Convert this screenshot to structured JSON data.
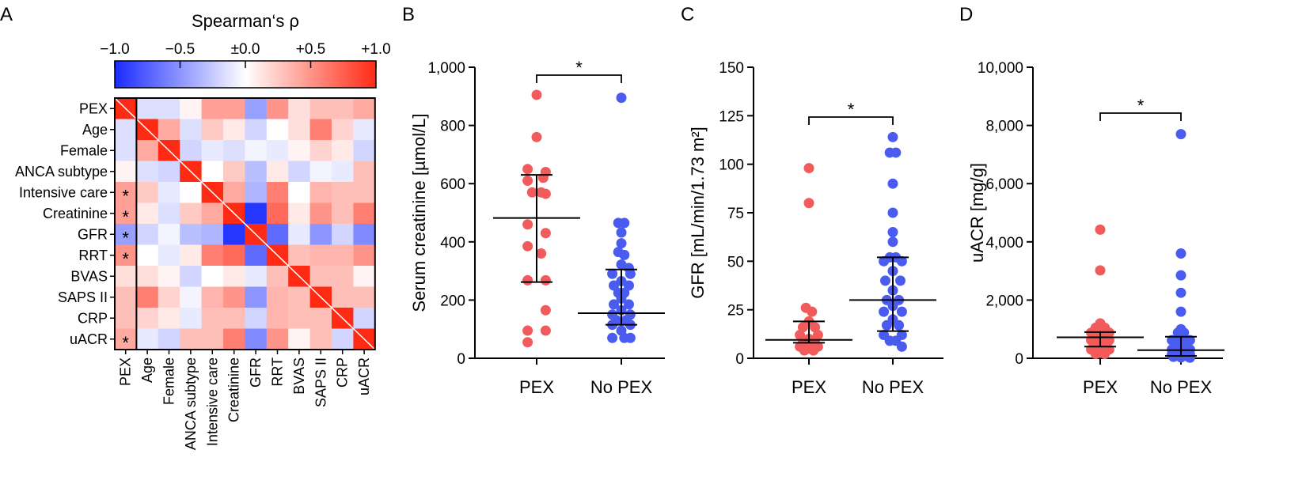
{
  "panels": {
    "A": "A",
    "B": "B",
    "C": "C",
    "D": "D"
  },
  "chart_data": [
    {
      "panel": "A",
      "type": "heatmap",
      "title": "Spearman‘s ρ",
      "colorbar": {
        "range": [
          -1.0,
          1.0
        ],
        "ticks": [
          "−1.0",
          "−0.5",
          "±0.0",
          "+0.5",
          "+1.0"
        ],
        "low_color": "#1a2bff",
        "mid_color": "#ffffff",
        "high_color": "#ff2a14"
      },
      "variables": [
        "PEX",
        "Age",
        "Female",
        "ANCA subtype",
        "Intensive care",
        "Creatinine",
        "GFR",
        "RRT",
        "BVAS",
        "SAPS II",
        "CRP",
        "uACR"
      ],
      "significant_marker": "*",
      "significant_with_PEX": [
        "Intensive care",
        "Creatinine",
        "GFR",
        "RRT",
        "uACR"
      ],
      "matrix": [
        [
          1.0,
          -0.15,
          -0.15,
          0.05,
          0.45,
          0.45,
          -0.45,
          0.5,
          0.15,
          0.3,
          0.3,
          0.4
        ],
        [
          -0.15,
          1.0,
          0.4,
          -0.15,
          0.25,
          0.1,
          -0.2,
          0.0,
          0.15,
          0.6,
          0.2,
          -0.1
        ],
        [
          -0.15,
          0.4,
          1.0,
          -0.2,
          -0.1,
          -0.15,
          -0.05,
          -0.1,
          0.05,
          0.2,
          0.1,
          -0.2
        ],
        [
          0.05,
          -0.15,
          -0.2,
          1.0,
          0.0,
          0.25,
          -0.3,
          0.1,
          -0.2,
          -0.05,
          -0.1,
          0.3
        ],
        [
          0.45,
          0.25,
          -0.1,
          0.0,
          1.0,
          0.4,
          -0.35,
          0.6,
          0.0,
          0.35,
          0.3,
          0.3
        ],
        [
          0.45,
          0.1,
          -0.15,
          0.25,
          0.4,
          1.0,
          -0.95,
          0.7,
          0.1,
          0.5,
          0.3,
          0.6
        ],
        [
          -0.45,
          -0.2,
          -0.05,
          -0.3,
          -0.35,
          -0.95,
          1.0,
          -0.7,
          -0.1,
          -0.5,
          -0.2,
          -0.55
        ],
        [
          0.5,
          0.0,
          -0.1,
          0.1,
          0.6,
          0.7,
          -0.7,
          1.0,
          0.3,
          0.35,
          0.35,
          0.5
        ],
        [
          0.15,
          0.15,
          0.05,
          -0.2,
          0.0,
          0.1,
          -0.1,
          0.3,
          1.0,
          0.3,
          0.3,
          0.05
        ],
        [
          0.3,
          0.6,
          0.2,
          -0.05,
          0.35,
          0.5,
          -0.5,
          0.35,
          0.3,
          1.0,
          0.3,
          0.3
        ],
        [
          0.3,
          0.2,
          0.1,
          -0.1,
          0.3,
          0.3,
          -0.2,
          0.35,
          0.3,
          0.3,
          1.0,
          -0.2
        ],
        [
          0.4,
          -0.1,
          -0.2,
          0.3,
          0.3,
          0.6,
          -0.55,
          0.5,
          0.05,
          0.3,
          -0.2,
          1.0
        ]
      ]
    },
    {
      "panel": "B",
      "type": "scatter",
      "ylabel": "Serum creatinine [µmol/L]",
      "ylim": [
        0,
        1000
      ],
      "yticks": [
        "0",
        "200",
        "400",
        "600",
        "800",
        "1,000"
      ],
      "ytick_values": [
        0,
        200,
        400,
        600,
        800,
        1000
      ],
      "categories": [
        "PEX",
        "No PEX"
      ],
      "significance": "*",
      "series": [
        {
          "name": "PEX",
          "color": "#f15b5b",
          "points": [
            [
              0,
              905
            ],
            [
              0,
              760
            ],
            [
              -0.3,
              650
            ],
            [
              0.3,
              640
            ],
            [
              -0.3,
              610
            ],
            [
              0.22,
              620
            ],
            [
              -0.15,
              570
            ],
            [
              0.15,
              570
            ],
            [
              0.3,
              565
            ],
            [
              -0.3,
              460
            ],
            [
              0.3,
              430
            ],
            [
              -0.3,
              385
            ],
            [
              0.15,
              360
            ],
            [
              -0.3,
              268
            ],
            [
              0.3,
              268
            ],
            [
              0.3,
              165
            ],
            [
              -0.3,
              95
            ],
            [
              0.3,
              95
            ],
            [
              -0.3,
              55
            ]
          ],
          "median": 482,
          "q1": 262,
          "q3": 630
        },
        {
          "name": "No PEX",
          "color": "#4a5cf0",
          "points": [
            [
              0,
              895
            ],
            [
              -0.1,
              465
            ],
            [
              0.1,
              465
            ],
            [
              0,
              432
            ],
            [
              0,
              395
            ],
            [
              -0.1,
              365
            ],
            [
              0.1,
              355
            ],
            [
              0,
              322
            ],
            [
              0.25,
              310
            ],
            [
              -0.3,
              290
            ],
            [
              0.3,
              290
            ],
            [
              0,
              265
            ],
            [
              -0.25,
              250
            ],
            [
              0.25,
              250
            ],
            [
              -0.1,
              225
            ],
            [
              0.1,
              225
            ],
            [
              0,
              205
            ],
            [
              -0.25,
              185
            ],
            [
              0.25,
              185
            ],
            [
              0,
              165
            ],
            [
              -0.3,
              150
            ],
            [
              0.3,
              150
            ],
            [
              -0.15,
              130
            ],
            [
              0.15,
              130
            ],
            [
              -0.3,
              115
            ],
            [
              0.3,
              115
            ],
            [
              0,
              95
            ],
            [
              -0.3,
              70
            ],
            [
              0.3,
              70
            ],
            [
              0.1,
              70
            ]
          ],
          "median": 155,
          "q1": 115,
          "q3": 305
        }
      ]
    },
    {
      "panel": "C",
      "type": "scatter",
      "ylabel": "GFR [mL/min/1.73 m²]",
      "ylim": [
        0,
        150
      ],
      "yticks": [
        "0",
        "25",
        "50",
        "75",
        "100",
        "125",
        "150"
      ],
      "ytick_values": [
        0,
        25,
        50,
        75,
        100,
        125,
        150
      ],
      "categories": [
        "PEX",
        "No PEX"
      ],
      "significance": "*",
      "series": [
        {
          "name": "PEX",
          "color": "#f15b5b",
          "points": [
            [
              0,
              98
            ],
            [
              0,
              80
            ],
            [
              -0.1,
              26
            ],
            [
              0.1,
              24
            ],
            [
              0,
              19
            ],
            [
              -0.2,
              16
            ],
            [
              0.2,
              16
            ],
            [
              -0.3,
              12
            ],
            [
              0.3,
              12
            ],
            [
              0,
              10
            ],
            [
              -0.2,
              8
            ],
            [
              0.2,
              8
            ],
            [
              -0.3,
              6
            ],
            [
              0.3,
              6
            ],
            [
              0,
              5
            ],
            [
              -0.15,
              4
            ],
            [
              0.15,
              4
            ],
            [
              0.1,
              6
            ]
          ],
          "median": 9.5,
          "q1": 8,
          "q3": 19
        },
        {
          "name": "No PEX",
          "color": "#4a5cf0",
          "points": [
            [
              0,
              114
            ],
            [
              -0.1,
              106
            ],
            [
              0.1,
              106
            ],
            [
              0,
              90
            ],
            [
              0,
              75
            ],
            [
              0,
              65
            ],
            [
              0,
              60
            ],
            [
              -0.1,
              52
            ],
            [
              0.1,
              52
            ],
            [
              -0.3,
              50
            ],
            [
              0.3,
              50
            ],
            [
              0,
              45
            ],
            [
              -0.25,
              40
            ],
            [
              0.25,
              40
            ],
            [
              0,
              35
            ],
            [
              -0.2,
              30
            ],
            [
              0.2,
              30
            ],
            [
              0,
              27
            ],
            [
              -0.3,
              24
            ],
            [
              0.3,
              24
            ],
            [
              0,
              20
            ],
            [
              -0.2,
              17
            ],
            [
              0.2,
              17
            ],
            [
              -0.3,
              12
            ],
            [
              0.3,
              12
            ],
            [
              -0.1,
              9
            ],
            [
              0.1,
              9
            ],
            [
              0.3,
              6
            ]
          ],
          "median": 30,
          "q1": 14,
          "q3": 52
        }
      ]
    },
    {
      "panel": "D",
      "type": "scatter",
      "ylabel": "uACR [mg/g]",
      "ylim": [
        0,
        10000
      ],
      "yticks": [
        "0",
        "2,000",
        "4,000",
        "6,000",
        "8,000",
        "10,000"
      ],
      "ytick_values": [
        0,
        2000,
        4000,
        6000,
        8000,
        10000
      ],
      "categories": [
        "PEX",
        "No PEX"
      ],
      "significance": "*",
      "series": [
        {
          "name": "PEX",
          "color": "#f15b5b",
          "points": [
            [
              0,
              4420
            ],
            [
              0,
              3020
            ],
            [
              0,
              1200
            ],
            [
              -0.15,
              1050
            ],
            [
              0.15,
              1050
            ],
            [
              -0.3,
              880
            ],
            [
              0.3,
              880
            ],
            [
              0,
              800
            ],
            [
              -0.2,
              720
            ],
            [
              0.2,
              720
            ],
            [
              -0.3,
              620
            ],
            [
              0.3,
              620
            ],
            [
              0,
              560
            ],
            [
              -0.2,
              480
            ],
            [
              0.2,
              480
            ],
            [
              -0.3,
              300
            ],
            [
              0.3,
              300
            ],
            [
              0,
              220
            ],
            [
              -0.15,
              150
            ],
            [
              0.15,
              150
            ]
          ],
          "median": 720,
          "q1": 400,
          "q3": 900
        },
        {
          "name": "No PEX",
          "color": "#4a5cf0",
          "points": [
            [
              0,
              7700
            ],
            [
              0,
              3600
            ],
            [
              0,
              2850
            ],
            [
              0,
              2250
            ],
            [
              0,
              1600
            ],
            [
              0,
              1000
            ],
            [
              -0.1,
              880
            ],
            [
              0.1,
              880
            ],
            [
              0,
              760
            ],
            [
              -0.3,
              620
            ],
            [
              0.3,
              620
            ],
            [
              -0.15,
              480
            ],
            [
              0.15,
              480
            ],
            [
              0,
              380
            ],
            [
              -0.3,
              300
            ],
            [
              0.3,
              300
            ],
            [
              -0.2,
              230
            ],
            [
              0.2,
              230
            ],
            [
              0,
              180
            ],
            [
              -0.3,
              130
            ],
            [
              0.3,
              130
            ],
            [
              -0.1,
              90
            ],
            [
              0.1,
              90
            ],
            [
              -0.25,
              50
            ],
            [
              0.25,
              50
            ],
            [
              0,
              30
            ],
            [
              0.3,
              20
            ]
          ],
          "median": 280,
          "q1": 80,
          "q3": 740
        }
      ]
    }
  ]
}
